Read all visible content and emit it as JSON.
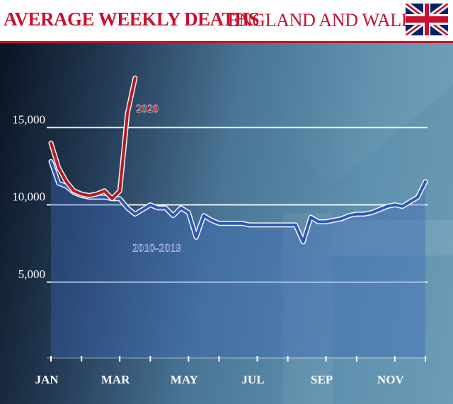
{
  "header": {
    "title": "AVERAGE WEEKLY DEATHS",
    "subtitle": "ENGLAND AND WALES",
    "flag_icon": "union-jack-flag-icon"
  },
  "colors": {
    "accent_red": "#c8102e",
    "series_2020": "#b21d22",
    "series_2010_2019": "#2f57b3",
    "gridline": "#ffffff"
  },
  "chart_data": {
    "type": "line",
    "title": "AVERAGE WEEKLY DEATHS",
    "subtitle": "ENGLAND AND WALES",
    "xlabel": "",
    "ylabel": "",
    "ylim": [
      0,
      17500
    ],
    "yticks": [
      {
        "value": 5000,
        "label": "5,000"
      },
      {
        "value": 10000,
        "label": "10,000"
      },
      {
        "value": 15000,
        "label": "15,000"
      }
    ],
    "xlim": [
      1,
      53
    ],
    "xticks": [
      {
        "week": 1,
        "label": "JAN"
      },
      {
        "week": 10,
        "label": "MAR"
      },
      {
        "week": 19,
        "label": "MAY"
      },
      {
        "week": 28,
        "label": "JUL"
      },
      {
        "week": 37,
        "label": "SEP"
      },
      {
        "week": 46,
        "label": "NOV"
      }
    ],
    "minor_tick_weeks": [
      5,
      14,
      23,
      32,
      41,
      50
    ],
    "grid": "horizontal",
    "series": [
      {
        "name": "2010-2019",
        "label_position": "below-line",
        "area_fill": true,
        "points": [
          [
            1,
            12800
          ],
          [
            2,
            11400
          ],
          [
            3,
            11200
          ],
          [
            4,
            10800
          ],
          [
            5,
            10600
          ],
          [
            6,
            10500
          ],
          [
            7,
            10500
          ],
          [
            8,
            10500
          ],
          [
            9,
            10400
          ],
          [
            10,
            10400
          ],
          [
            11,
            9800
          ],
          [
            12,
            9400
          ],
          [
            13,
            9700
          ],
          [
            14,
            10000
          ],
          [
            15,
            9800
          ],
          [
            16,
            9800
          ],
          [
            17,
            9300
          ],
          [
            18,
            9800
          ],
          [
            19,
            9500
          ],
          [
            20,
            7900
          ],
          [
            21,
            9300
          ],
          [
            22,
            9000
          ],
          [
            23,
            8800
          ],
          [
            24,
            8800
          ],
          [
            25,
            8800
          ],
          [
            26,
            8800
          ],
          [
            27,
            8700
          ],
          [
            28,
            8700
          ],
          [
            29,
            8700
          ],
          [
            30,
            8700
          ],
          [
            31,
            8700
          ],
          [
            32,
            8700
          ],
          [
            33,
            8700
          ],
          [
            34,
            7600
          ],
          [
            35,
            9200
          ],
          [
            36,
            8900
          ],
          [
            37,
            8900
          ],
          [
            38,
            9000
          ],
          [
            39,
            9100
          ],
          [
            40,
            9300
          ],
          [
            41,
            9400
          ],
          [
            42,
            9400
          ],
          [
            43,
            9500
          ],
          [
            44,
            9700
          ],
          [
            45,
            9900
          ],
          [
            46,
            10000
          ],
          [
            47,
            9900
          ],
          [
            48,
            10200
          ],
          [
            49,
            10500
          ],
          [
            50,
            11500
          ]
        ]
      },
      {
        "name": "2020",
        "label_position": "right-of-line",
        "points": [
          [
            1,
            14000
          ],
          [
            2,
            12400
          ],
          [
            3,
            11500
          ],
          [
            4,
            10900
          ],
          [
            5,
            10700
          ],
          [
            6,
            10600
          ],
          [
            7,
            10700
          ],
          [
            8,
            10900
          ],
          [
            9,
            10400
          ],
          [
            10,
            10900
          ],
          [
            11,
            15900
          ],
          [
            12,
            18200
          ]
        ]
      }
    ]
  }
}
